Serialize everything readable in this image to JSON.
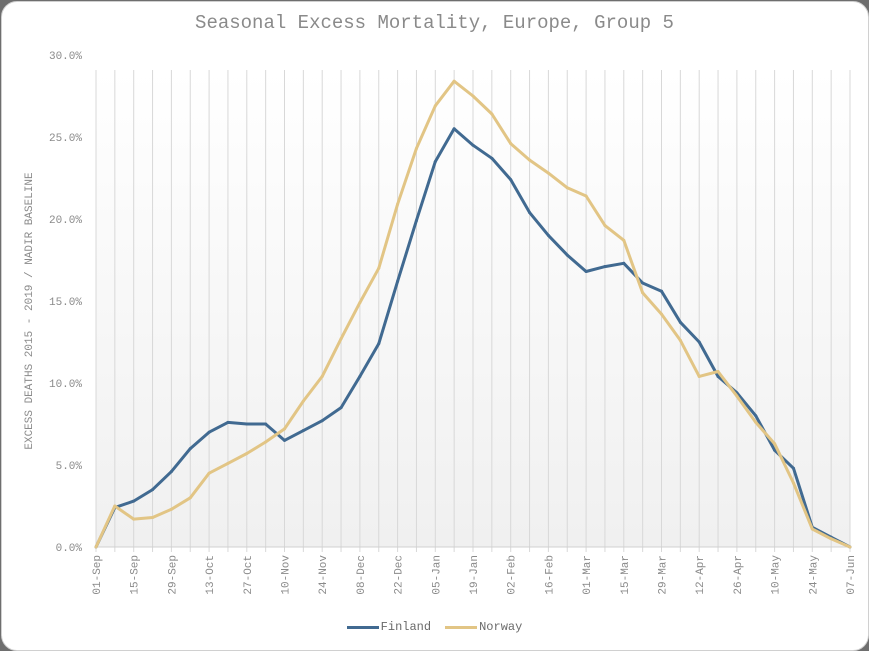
{
  "chart_data": {
    "type": "line",
    "title": "Seasonal Excess Mortality, Europe, Group 5",
    "xlabel": "",
    "ylabel": "EXCESS DEATHS 2015 - 2019 / NADIR BASELINE",
    "ylim": [
      0,
      30
    ],
    "y_ticks": [
      "0.0%",
      "5.0%",
      "10.0%",
      "15.0%",
      "20.0%",
      "25.0%",
      "30.0%"
    ],
    "y_tick_values": [
      0,
      5,
      10,
      15,
      20,
      25,
      30
    ],
    "x_tick_labels": [
      "01-Sep",
      "15-Sep",
      "29-Sep",
      "13-Oct",
      "27-Oct",
      "10-Nov",
      "24-Nov",
      "08-Dec",
      "22-Dec",
      "05-Jan",
      "19-Jan",
      "02-Feb",
      "16-Feb",
      "01-Mar",
      "15-Mar",
      "29-Mar",
      "12-Apr",
      "26-Apr",
      "10-May",
      "24-May",
      "07-Jun"
    ],
    "x_week_count": 41,
    "grid": "vertical weekly",
    "legend_position": "bottom",
    "series": [
      {
        "name": "Finland",
        "color": "#416a91",
        "values": [
          0.0,
          2.4,
          2.8,
          3.5,
          4.6,
          6.0,
          7.0,
          7.6,
          7.5,
          7.5,
          6.5,
          7.1,
          7.7,
          8.5,
          10.4,
          12.4,
          16.2,
          19.9,
          23.5,
          25.5,
          24.5,
          23.7,
          22.4,
          20.4,
          19.0,
          17.8,
          16.8,
          17.1,
          17.3,
          16.1,
          15.6,
          13.7,
          12.5,
          10.4,
          9.4,
          8.0,
          5.9,
          4.8,
          1.2,
          0.6,
          0.0
        ]
      },
      {
        "name": "Norway",
        "color": "#e2c585",
        "values": [
          0.0,
          2.5,
          1.7,
          1.8,
          2.3,
          3.0,
          4.5,
          5.1,
          5.7,
          6.4,
          7.2,
          8.9,
          10.4,
          12.7,
          14.9,
          17.0,
          20.9,
          24.3,
          26.9,
          28.4,
          27.5,
          26.4,
          24.6,
          23.6,
          22.8,
          21.9,
          21.4,
          19.6,
          18.7,
          15.5,
          14.2,
          12.6,
          10.4,
          10.7,
          9.2,
          7.6,
          6.3,
          3.9,
          1.1,
          0.5,
          0.0
        ]
      }
    ]
  }
}
